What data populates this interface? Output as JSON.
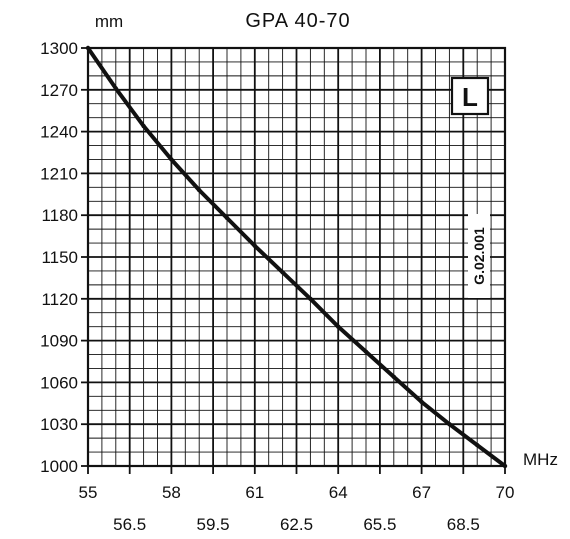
{
  "chart_data": {
    "type": "line",
    "title": "GPA 40-70",
    "ylabel": "mm",
    "xlabel": "MHz",
    "xlim": [
      55,
      70
    ],
    "ylim": [
      1000,
      1300
    ],
    "x_ticks_major": [
      "55",
      "58",
      "61",
      "64",
      "67",
      "70"
    ],
    "x_ticks_minor": [
      "56.5",
      "59.5",
      "62.5",
      "65.5",
      "68.5"
    ],
    "y_ticks": [
      "1000",
      "1030",
      "1060",
      "1090",
      "1120",
      "1150",
      "1180",
      "1210",
      "1240",
      "1270",
      "1300"
    ],
    "grid": true,
    "series": [
      {
        "x": [
          55,
          56,
          57,
          58,
          59,
          60,
          61,
          62,
          63,
          64,
          65,
          66,
          67,
          68,
          69,
          70
        ],
        "y": [
          1300,
          1271,
          1244,
          1220,
          1198,
          1178,
          1158,
          1139,
          1120,
          1100,
          1082,
          1064,
          1046,
          1030,
          1015,
          1000
        ],
        "color": "#111111"
      }
    ],
    "annotations": {
      "badge": "L",
      "code": "G.02.001"
    }
  }
}
